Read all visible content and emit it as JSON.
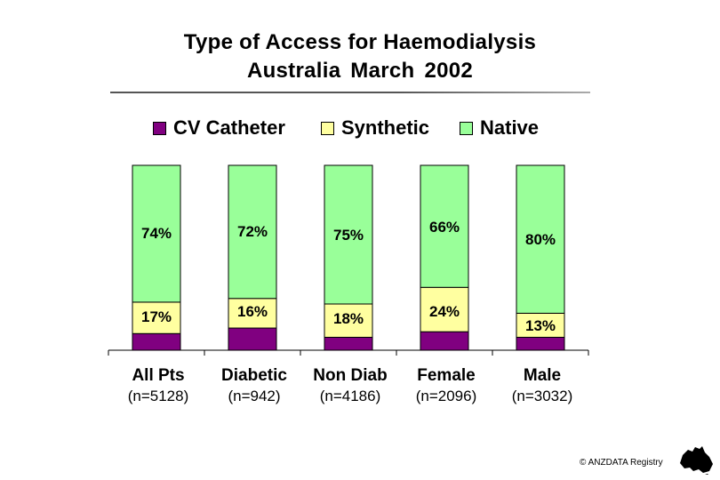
{
  "colors": {
    "cv": "#800080",
    "synthetic": "#ffffa0",
    "native": "#99ff99",
    "stroke": "#000000"
  },
  "footer": {
    "credit": "© ANZDATA Registry"
  },
  "logo": {
    "icon": "australia-map-icon"
  },
  "chart_data": {
    "type": "bar",
    "stacked": true,
    "title": "Type of Access for Haemodialysis",
    "subtitle": "Australia   March 2002",
    "xlabel": "",
    "ylabel": "",
    "ylim": [
      0,
      100
    ],
    "grid": false,
    "legend_position": "top",
    "categories": [
      {
        "name": "All Pts",
        "n": "(n=5128)"
      },
      {
        "name": "Diabetic",
        "n": "(n=942)"
      },
      {
        "name": "Non Diab",
        "n": "(n=4186)"
      },
      {
        "name": "Female",
        "n": "(n=2096)"
      },
      {
        "name": "Male",
        "n": "(n=3032)"
      }
    ],
    "series": [
      {
        "name": "CV Catheter",
        "key": "cv",
        "values": [
          9,
          12,
          7,
          10,
          7
        ],
        "labels": [
          "",
          "",
          "",
          "",
          ""
        ]
      },
      {
        "name": "Synthetic",
        "key": "synthetic",
        "values": [
          17,
          16,
          18,
          24,
          13
        ],
        "labels": [
          "17%",
          "16%",
          "18%",
          "24%",
          "13%"
        ]
      },
      {
        "name": "Native",
        "key": "native",
        "values": [
          74,
          72,
          75,
          66,
          80
        ],
        "labels": [
          "74%",
          "72%",
          "75%",
          "66%",
          "80%"
        ]
      }
    ]
  }
}
